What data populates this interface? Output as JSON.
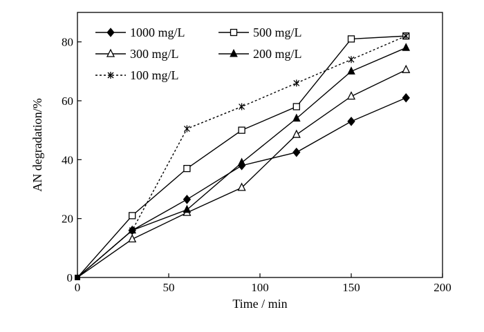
{
  "chart_data": {
    "type": "line",
    "title": "",
    "xlabel": "Time / min",
    "ylabel": "AN degradation/%",
    "xlim": [
      0,
      200
    ],
    "ylim": [
      0,
      90
    ],
    "xticks": [
      0,
      50,
      100,
      150,
      200
    ],
    "yticks": [
      20,
      40,
      60,
      80
    ],
    "grid": false,
    "legend_position": "top-left",
    "series": [
      {
        "name": "1000 mg/L",
        "marker": "diamond-filled",
        "line": "solid",
        "x": [
          0,
          30,
          60,
          90,
          120,
          150,
          180
        ],
        "y": [
          0,
          16,
          26.5,
          38,
          42.5,
          53,
          61
        ]
      },
      {
        "name": "500 mg/L",
        "marker": "square-open",
        "line": "solid",
        "x": [
          0,
          30,
          60,
          90,
          120,
          150,
          180
        ],
        "y": [
          0,
          21,
          37,
          50,
          58,
          81,
          82
        ]
      },
      {
        "name": "300 mg/L",
        "marker": "triangle-open",
        "line": "solid",
        "x": [
          0,
          30,
          60,
          90,
          120,
          150,
          180
        ],
        "y": [
          0,
          13,
          22,
          30.5,
          48.5,
          61.5,
          70.5
        ]
      },
      {
        "name": "200 mg/L",
        "marker": "triangle-filled",
        "line": "solid",
        "x": [
          0,
          30,
          60,
          90,
          120,
          150,
          180
        ],
        "y": [
          0,
          16,
          23,
          39,
          54,
          70,
          78
        ]
      },
      {
        "name": "100 mg/L",
        "marker": "asterisk",
        "line": "dotted",
        "x": [
          0,
          30,
          60,
          90,
          120,
          150,
          180
        ],
        "y": [
          0,
          16,
          50.5,
          58,
          66,
          74,
          82
        ]
      }
    ]
  }
}
